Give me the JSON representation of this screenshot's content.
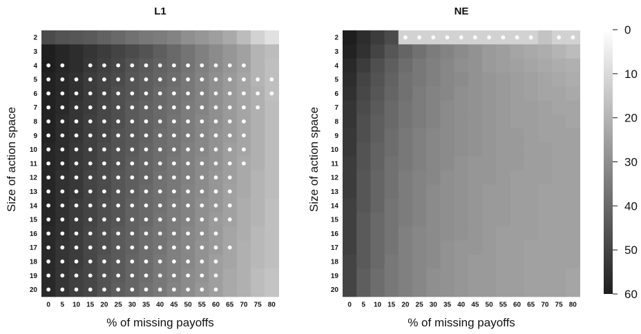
{
  "chart_data": {
    "type": "heatmap",
    "x_label": "% of missing payoffs",
    "y_label": "Size of action space",
    "x": [
      0,
      5,
      10,
      15,
      20,
      25,
      30,
      35,
      40,
      45,
      50,
      55,
      60,
      65,
      70,
      75,
      80
    ],
    "y": [
      2,
      3,
      4,
      5,
      6,
      7,
      8,
      9,
      10,
      11,
      12,
      13,
      14,
      15,
      16,
      17,
      18,
      19,
      20
    ],
    "colorbar": {
      "ticks": [
        0,
        10,
        20,
        30,
        40,
        50,
        60
      ],
      "range": [
        0,
        60
      ],
      "low_color": "#ffffff",
      "high_color": "#1e1e1e",
      "reversed": true
    },
    "panels": [
      {
        "title": "L1",
        "values": [
          [
            48,
            46,
            45,
            44,
            42,
            40,
            38,
            36,
            35,
            33,
            30,
            28,
            26,
            23,
            18,
            12,
            8
          ],
          [
            60,
            58,
            56,
            54,
            52,
            50,
            48,
            46,
            43,
            40,
            37,
            34,
            31,
            28,
            25,
            20,
            18
          ],
          [
            60,
            58,
            56,
            53,
            51,
            49,
            46,
            44,
            42,
            40,
            37,
            34,
            31,
            28,
            25,
            20,
            17
          ],
          [
            59,
            57,
            55,
            52,
            50,
            48,
            45,
            43,
            41,
            39,
            36,
            33,
            30,
            27,
            24,
            20,
            17
          ],
          [
            59,
            57,
            55,
            52,
            50,
            47,
            45,
            43,
            40,
            38,
            36,
            33,
            30,
            27,
            24,
            21,
            17
          ],
          [
            59,
            57,
            54,
            52,
            49,
            47,
            44,
            42,
            40,
            38,
            35,
            33,
            30,
            27,
            24,
            21,
            18
          ],
          [
            59,
            56,
            54,
            51,
            49,
            47,
            44,
            42,
            40,
            37,
            35,
            32,
            30,
            27,
            24,
            21,
            18
          ],
          [
            59,
            56,
            54,
            51,
            49,
            46,
            44,
            42,
            39,
            37,
            35,
            32,
            29,
            27,
            24,
            21,
            18
          ],
          [
            58,
            56,
            53,
            51,
            48,
            46,
            44,
            41,
            39,
            37,
            34,
            32,
            29,
            26,
            24,
            21,
            18
          ],
          [
            58,
            56,
            53,
            51,
            48,
            46,
            43,
            41,
            39,
            36,
            34,
            31,
            29,
            26,
            23,
            21,
            18
          ],
          [
            58,
            55,
            53,
            50,
            48,
            45,
            43,
            41,
            38,
            36,
            34,
            31,
            28,
            26,
            23,
            20,
            18
          ],
          [
            58,
            55,
            53,
            50,
            48,
            45,
            43,
            40,
            38,
            36,
            33,
            31,
            28,
            25,
            23,
            20,
            18
          ],
          [
            58,
            55,
            52,
            50,
            47,
            45,
            42,
            40,
            38,
            35,
            33,
            30,
            28,
            25,
            22,
            20,
            17
          ],
          [
            58,
            55,
            52,
            50,
            47,
            45,
            42,
            40,
            37,
            35,
            33,
            30,
            27,
            25,
            22,
            20,
            17
          ],
          [
            57,
            55,
            52,
            49,
            47,
            44,
            42,
            39,
            37,
            35,
            32,
            30,
            27,
            24,
            22,
            19,
            17
          ],
          [
            57,
            54,
            52,
            49,
            47,
            44,
            42,
            39,
            37,
            34,
            32,
            29,
            27,
            24,
            21,
            19,
            17
          ],
          [
            57,
            54,
            52,
            49,
            46,
            44,
            41,
            39,
            36,
            34,
            32,
            29,
            26,
            24,
            21,
            19,
            17
          ],
          [
            57,
            54,
            51,
            49,
            46,
            44,
            41,
            39,
            36,
            34,
            31,
            29,
            26,
            23,
            21,
            18,
            16
          ],
          [
            57,
            54,
            51,
            49,
            46,
            43,
            41,
            38,
            36,
            33,
            31,
            28,
            26,
            23,
            21,
            18,
            16
          ]
        ],
        "dots": [
          [
            4,
            [
              0,
              5,
              15,
              20,
              25,
              30,
              35,
              40,
              45,
              50,
              55,
              60,
              65,
              70
            ]
          ],
          [
            5,
            [
              0,
              5,
              10,
              15,
              20,
              25,
              30,
              35,
              40,
              45,
              50,
              55,
              60,
              65,
              70,
              75,
              80
            ]
          ],
          [
            6,
            [
              0,
              5,
              10,
              15,
              20,
              25,
              30,
              35,
              40,
              45,
              50,
              55,
              60,
              65,
              70,
              75,
              80
            ]
          ],
          [
            7,
            [
              0,
              5,
              10,
              15,
              20,
              25,
              30,
              35,
              40,
              45,
              50,
              55,
              60,
              65,
              70,
              75
            ]
          ],
          [
            8,
            [
              0,
              5,
              10,
              15,
              20,
              25,
              30,
              35,
              40,
              45,
              50,
              55,
              60,
              65,
              70
            ]
          ],
          [
            9,
            [
              0,
              5,
              10,
              15,
              20,
              25,
              30,
              35,
              40,
              45,
              50,
              55,
              60,
              65,
              70
            ]
          ],
          [
            10,
            [
              0,
              5,
              10,
              15,
              20,
              25,
              30,
              35,
              40,
              45,
              50,
              55,
              60,
              65,
              70
            ]
          ],
          [
            11,
            [
              0,
              5,
              10,
              15,
              20,
              25,
              30,
              35,
              40,
              45,
              50,
              55,
              60,
              65,
              70
            ]
          ],
          [
            12,
            [
              0,
              5,
              10,
              15,
              20,
              25,
              30,
              35,
              40,
              45,
              50,
              55,
              60,
              65
            ]
          ],
          [
            13,
            [
              0,
              5,
              10,
              15,
              20,
              25,
              30,
              35,
              40,
              45,
              50,
              55,
              60,
              65
            ]
          ],
          [
            14,
            [
              0,
              5,
              10,
              15,
              20,
              25,
              30,
              35,
              40,
              45,
              50,
              55,
              60,
              65
            ]
          ],
          [
            15,
            [
              0,
              5,
              10,
              15,
              20,
              25,
              30,
              35,
              40,
              45,
              50,
              55,
              60,
              65
            ]
          ],
          [
            16,
            [
              0,
              5,
              10,
              15,
              20,
              25,
              30,
              35,
              40,
              45,
              50,
              55,
              60
            ]
          ],
          [
            17,
            [
              0,
              5,
              10,
              15,
              20,
              25,
              30,
              35,
              40,
              45,
              50,
              55,
              60,
              65
            ]
          ],
          [
            18,
            [
              0,
              5,
              10,
              15,
              20,
              25,
              30,
              35,
              40,
              45,
              50,
              55,
              60
            ]
          ],
          [
            19,
            [
              0,
              5,
              10,
              15,
              20,
              25,
              30,
              35,
              40,
              45,
              50,
              55,
              60
            ]
          ],
          [
            20,
            [
              0,
              5,
              10,
              15,
              20,
              25,
              30,
              35,
              40,
              45,
              50,
              55,
              60
            ]
          ]
        ]
      },
      {
        "title": "NE",
        "values": [
          [
            60,
            56,
            52,
            48,
            12,
            12,
            12,
            12,
            12,
            12,
            12,
            12,
            12,
            12,
            16,
            12,
            12
          ],
          [
            59,
            55,
            50,
            45,
            41,
            38,
            35,
            33,
            31,
            29,
            27,
            26,
            24,
            23,
            22,
            20,
            18
          ],
          [
            57,
            52,
            47,
            43,
            39,
            36,
            34,
            32,
            30,
            29,
            27,
            26,
            25,
            24,
            23,
            22,
            21
          ],
          [
            56,
            50,
            46,
            42,
            38,
            36,
            34,
            32,
            31,
            29,
            28,
            27,
            26,
            25,
            24,
            23,
            22
          ],
          [
            55,
            49,
            45,
            41,
            38,
            35,
            33,
            32,
            30,
            29,
            28,
            27,
            26,
            25,
            24,
            24,
            23
          ],
          [
            54,
            48,
            44,
            40,
            37,
            35,
            33,
            31,
            30,
            29,
            28,
            27,
            26,
            26,
            25,
            24,
            24
          ],
          [
            54,
            47,
            43,
            40,
            37,
            35,
            33,
            31,
            30,
            29,
            28,
            27,
            26,
            26,
            25,
            25,
            24
          ],
          [
            53,
            47,
            43,
            39,
            36,
            34,
            32,
            31,
            30,
            29,
            28,
            27,
            27,
            26,
            25,
            25,
            25
          ],
          [
            53,
            46,
            42,
            39,
            36,
            34,
            32,
            31,
            30,
            29,
            28,
            27,
            27,
            26,
            26,
            25,
            25
          ],
          [
            52,
            46,
            42,
            38,
            36,
            34,
            32,
            31,
            29,
            28,
            28,
            27,
            27,
            26,
            26,
            25,
            25
          ],
          [
            52,
            45,
            41,
            38,
            35,
            33,
            32,
            30,
            29,
            28,
            28,
            27,
            26,
            26,
            26,
            25,
            25
          ],
          [
            52,
            45,
            41,
            38,
            35,
            33,
            31,
            30,
            29,
            28,
            27,
            27,
            26,
            26,
            25,
            25,
            25
          ],
          [
            51,
            45,
            41,
            37,
            35,
            33,
            31,
            30,
            29,
            28,
            27,
            27,
            26,
            26,
            25,
            25,
            25
          ],
          [
            51,
            44,
            40,
            37,
            35,
            33,
            31,
            30,
            29,
            28,
            27,
            27,
            26,
            26,
            25,
            25,
            25
          ],
          [
            51,
            44,
            40,
            37,
            34,
            32,
            31,
            30,
            29,
            28,
            27,
            26,
            26,
            26,
            25,
            25,
            25
          ],
          [
            51,
            44,
            40,
            37,
            34,
            32,
            31,
            29,
            28,
            28,
            27,
            26,
            26,
            25,
            25,
            25,
            25
          ],
          [
            50,
            44,
            40,
            36,
            34,
            32,
            31,
            29,
            28,
            27,
            27,
            26,
            26,
            25,
            25,
            25,
            25
          ],
          [
            50,
            43,
            39,
            36,
            34,
            32,
            30,
            29,
            28,
            27,
            27,
            26,
            26,
            25,
            25,
            25,
            24
          ],
          [
            50,
            43,
            39,
            36,
            34,
            32,
            30,
            29,
            28,
            27,
            27,
            26,
            26,
            25,
            25,
            25,
            24
          ]
        ],
        "dots": [
          [
            2,
            [
              20,
              25,
              30,
              35,
              40,
              45,
              50,
              55,
              60,
              65,
              75,
              80
            ]
          ]
        ]
      }
    ]
  }
}
